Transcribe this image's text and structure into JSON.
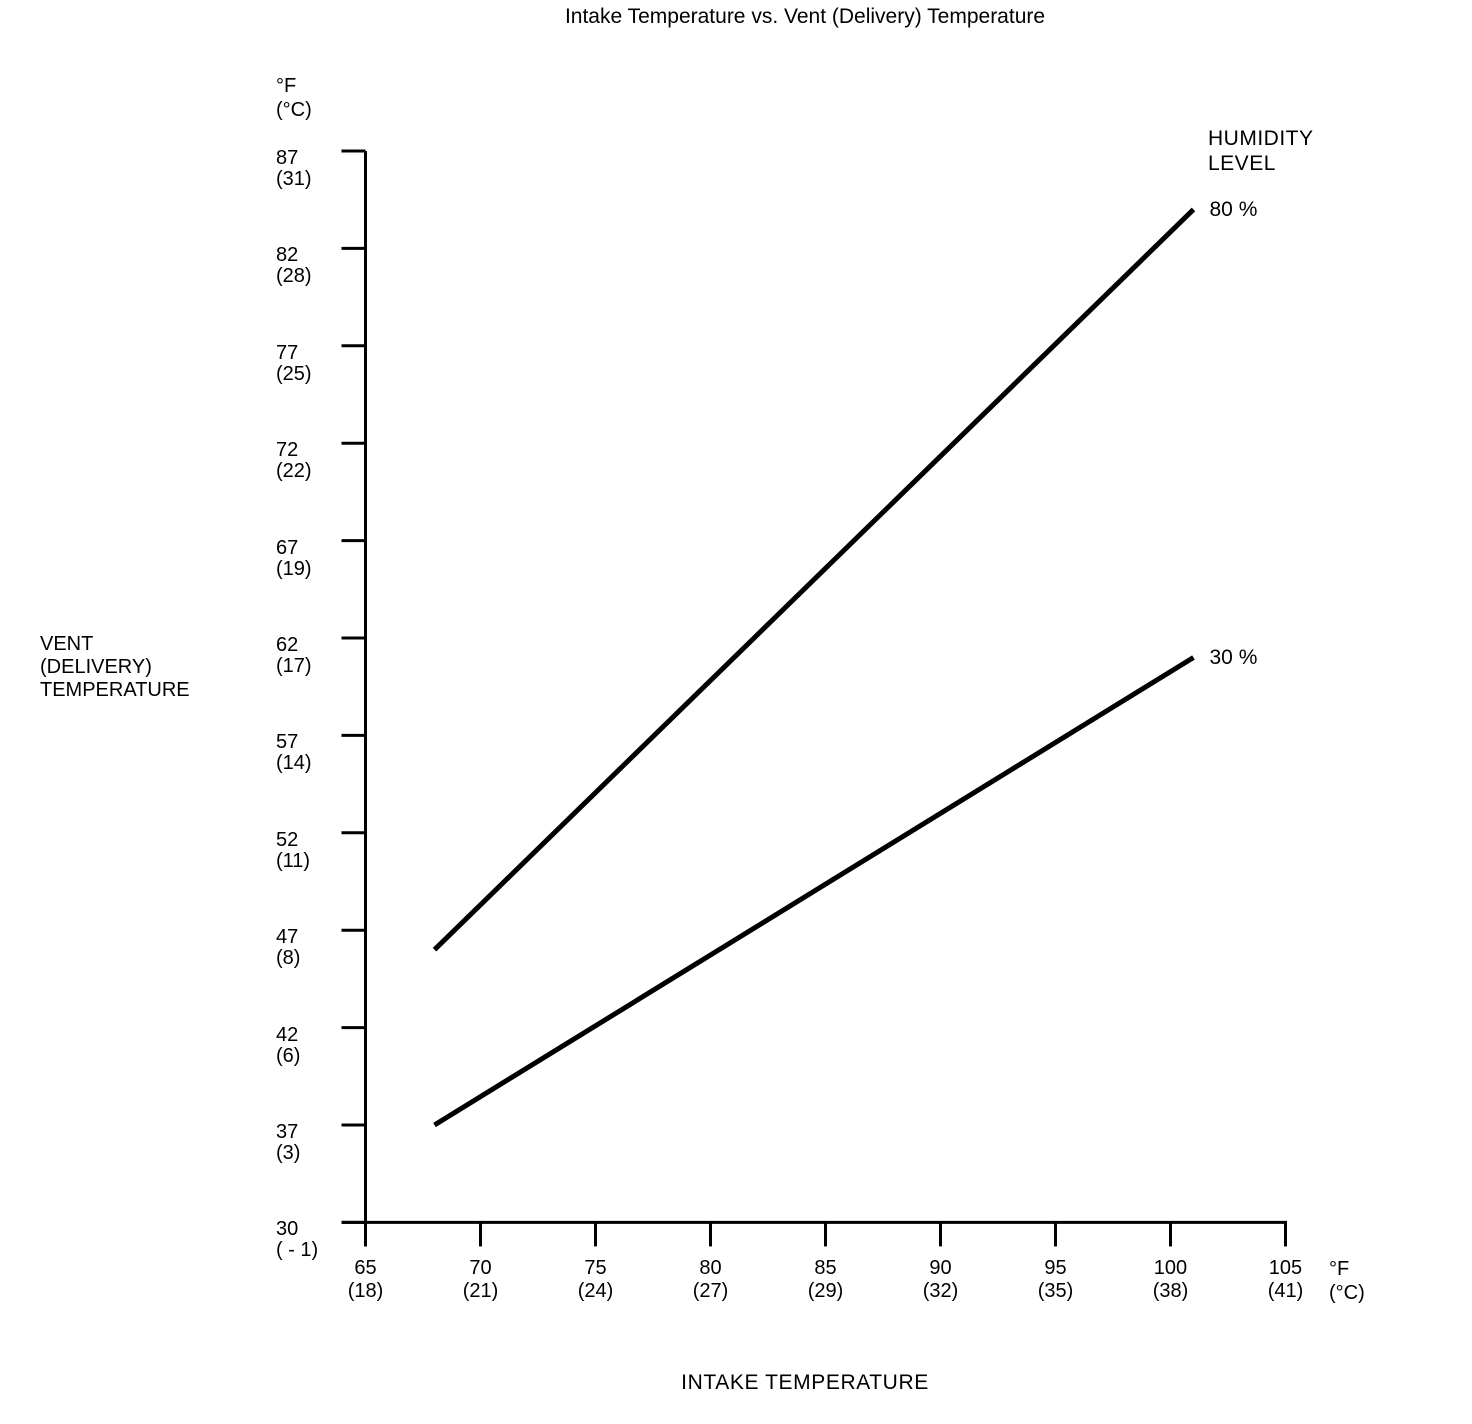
{
  "title": "Intake Temperature vs. Vent (Delivery) Temperature",
  "y_axis": {
    "unit": {
      "f": "°F",
      "c": "(°C)"
    },
    "title_lines": [
      "VENT",
      "(DELIVERY)",
      "TEMPERATURE"
    ],
    "ticks": [
      {
        "f": "87",
        "c": "(31)"
      },
      {
        "f": "82",
        "c": "(28)"
      },
      {
        "f": "77",
        "c": "(25)"
      },
      {
        "f": "72",
        "c": "(22)"
      },
      {
        "f": "67",
        "c": "(19)"
      },
      {
        "f": "62",
        "c": "(17)"
      },
      {
        "f": "57",
        "c": "(14)"
      },
      {
        "f": "52",
        "c": "(11)"
      },
      {
        "f": "47",
        "c": "(8)"
      },
      {
        "f": "42",
        "c": "(6)"
      },
      {
        "f": "37",
        "c": "(3)"
      },
      {
        "f": "30",
        "c": "( - 1)"
      }
    ]
  },
  "x_axis": {
    "unit": {
      "f": "°F",
      "c": "(°C)"
    },
    "title": "INTAKE TEMPERATURE",
    "ticks": [
      {
        "f": "65",
        "c": "(18)"
      },
      {
        "f": "70",
        "c": "(21)"
      },
      {
        "f": "75",
        "c": "(24)"
      },
      {
        "f": "80",
        "c": "(27)"
      },
      {
        "f": "85",
        "c": "(29)"
      },
      {
        "f": "90",
        "c": "(32)"
      },
      {
        "f": "95",
        "c": "(35)"
      },
      {
        "f": "100",
        "c": "(38)"
      },
      {
        "f": "105",
        "c": "(41)"
      }
    ]
  },
  "legend": {
    "title_lines": [
      "HUMIDITY",
      "LEVEL"
    ]
  },
  "colors": {
    "ink": "#000000",
    "background": "#ffffff"
  },
  "chart_data": {
    "type": "line",
    "title": "Intake Temperature vs. Vent (Delivery) Temperature",
    "xlabel": "INTAKE TEMPERATURE",
    "ylabel": "VENT (DELIVERY) TEMPERATURE",
    "x_unit": "°F (°C)",
    "y_unit": "°F (°C)",
    "xlim": [
      65,
      105
    ],
    "ylim_drawn": [
      30,
      87
    ],
    "x_tick_values_f": [
      65,
      70,
      75,
      80,
      85,
      90,
      95,
      100,
      105
    ],
    "x_tick_values_c": [
      18,
      21,
      24,
      27,
      29,
      32,
      35,
      38,
      41
    ],
    "y_tick_values_f": [
      87,
      82,
      77,
      72,
      67,
      62,
      57,
      52,
      47,
      42,
      37,
      30
    ],
    "y_tick_values_c": [
      31,
      28,
      25,
      22,
      19,
      17,
      14,
      11,
      8,
      6,
      3,
      -1
    ],
    "grid": false,
    "legend_title": "HUMIDITY LEVEL",
    "legend_position": "top-right",
    "series": [
      {
        "name": "80 %",
        "points": [
          {
            "intake_f": 68,
            "vent_f": 46
          },
          {
            "intake_f": 101,
            "vent_f": 84
          }
        ]
      },
      {
        "name": "30 %",
        "points": [
          {
            "intake_f": 68,
            "vent_f": 37
          },
          {
            "intake_f": 101,
            "vent_f": 61
          }
        ]
      }
    ]
  }
}
